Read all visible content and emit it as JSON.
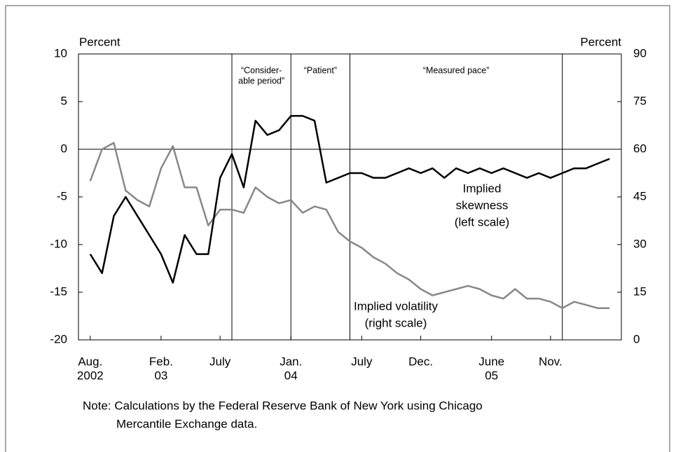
{
  "chart_data": {
    "type": "line",
    "y_label": "Percent",
    "y2_label": "Percent",
    "x": [
      "2002-08",
      "2002-09",
      "2002-10",
      "2002-11",
      "2002-12",
      "2003-01",
      "2003-02",
      "2003-03",
      "2003-04",
      "2003-05",
      "2003-06",
      "2003-07",
      "2003-08",
      "2003-09",
      "2003-10",
      "2003-11",
      "2003-12",
      "2004-01",
      "2004-02",
      "2004-03",
      "2004-04",
      "2004-05",
      "2004-06",
      "2004-07",
      "2004-08",
      "2004-09",
      "2004-10",
      "2004-11",
      "2004-12",
      "2005-01",
      "2005-02",
      "2005-03",
      "2005-04",
      "2005-05",
      "2005-06",
      "2005-07",
      "2005-08",
      "2005-09",
      "2005-10",
      "2005-11",
      "2005-12",
      "2006-01",
      "2006-02",
      "2006-03",
      "2006-04"
    ],
    "xlim": [
      "2002-07",
      "2006-05"
    ],
    "xticks": [
      {
        "value": "2002-08",
        "label": "Aug.",
        "sub": "2002"
      },
      {
        "value": "2003-02",
        "label": "Feb.",
        "sub": "03"
      },
      {
        "value": "2003-07",
        "label": "July"
      },
      {
        "value": "2004-01",
        "label": "Jan.",
        "sub": "04"
      },
      {
        "value": "2004-07",
        "label": "July"
      },
      {
        "value": "2004-12",
        "label": "Dec."
      },
      {
        "value": "2005-06",
        "label": "June",
        "sub": "05"
      },
      {
        "value": "2005-11",
        "label": "Nov."
      }
    ],
    "ylim": [
      -20,
      10
    ],
    "yticks": [
      -20,
      -15,
      -10,
      -5,
      0,
      5,
      10
    ],
    "y2lim": [
      0,
      90
    ],
    "y2ticks": [
      0,
      15,
      30,
      45,
      60,
      75,
      90
    ],
    "series": [
      {
        "label": [
          "Implied",
          "skewness",
          "(left scale)"
        ],
        "color": "#000000",
        "values": [
          -11,
          -13,
          -7,
          -5,
          -7,
          -9,
          -11,
          -14,
          -9,
          -11,
          -11,
          -3,
          -0.5,
          -4,
          3,
          1.5,
          2,
          3.5,
          3.5,
          3,
          -3.5,
          -3,
          -2.5,
          -2.5,
          -3,
          -3,
          -2.5,
          -2,
          -2.5,
          -2,
          -3,
          -2,
          -2.5,
          -2,
          -2.5,
          -2,
          -2.5,
          -3,
          -2.5,
          -3,
          -2.5,
          -2,
          -2,
          -1.5,
          -1
        ]
      },
      {
        "label": [
          "Implied volatility",
          "(right scale)"
        ],
        "color": "#888888",
        "axis": "y2",
        "values": [
          50,
          60,
          62,
          47,
          44,
          42,
          54,
          61,
          48,
          48,
          36,
          41,
          41,
          40,
          48,
          45,
          43,
          44,
          40,
          42,
          41,
          34,
          31,
          29,
          26,
          24,
          21,
          19,
          16,
          14,
          15,
          16,
          17,
          16,
          14,
          13,
          16,
          13,
          13,
          12,
          10,
          12,
          11,
          10,
          10
        ]
      }
    ],
    "events": [
      {
        "x": "2003-08",
        "label": [
          "“Consider-",
          "able period”"
        ]
      },
      {
        "x": "2004-01",
        "label": [
          "“Patient”"
        ]
      },
      {
        "x": "2004-06",
        "label": [
          "“Measured pace”"
        ]
      },
      {
        "x": "2005-12"
      }
    ],
    "note": [
      "Note: Calculations by the Federal Reserve Bank of New York using Chicago",
      "Mercantile Exchange data."
    ]
  }
}
